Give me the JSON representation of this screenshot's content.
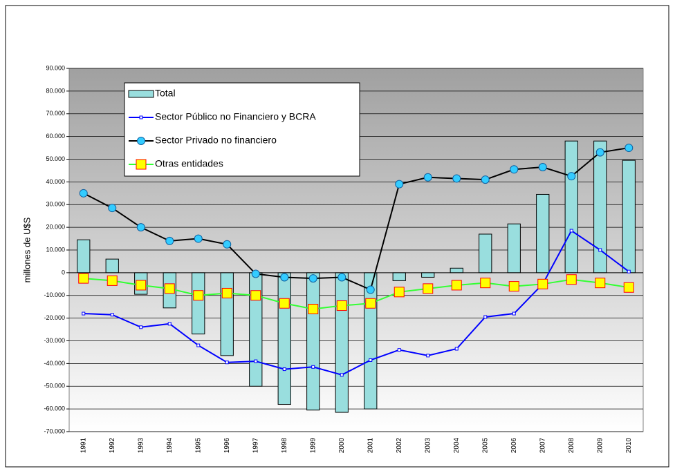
{
  "chart_data": {
    "type": "bar",
    "y_label": "millones de U$S",
    "categories": [
      "1991",
      "1992",
      "1993",
      "1994",
      "1995",
      "1996",
      "1997",
      "1998",
      "1999",
      "2000",
      "2001",
      "2002",
      "2003",
      "2004",
      "2005",
      "2006",
      "2007",
      "2008",
      "2009",
      "2010"
    ],
    "series": [
      {
        "name": "Total",
        "type": "bar",
        "color": "#99dede",
        "values": [
          14500,
          6000,
          -9500,
          -15500,
          -27000,
          -36500,
          -50000,
          -58000,
          -60500,
          -61500,
          -60000,
          -3500,
          -2000,
          2000,
          17000,
          21500,
          34500,
          58000,
          58000,
          49500
        ]
      },
      {
        "name": "Sector Público no Financiero y BCRA",
        "type": "line",
        "color": "#0000ff",
        "values": [
          -18000,
          -18500,
          -24000,
          -22500,
          -32000,
          -39500,
          -39000,
          -42500,
          -41500,
          -45000,
          -38500,
          -34000,
          -36500,
          -33500,
          -19500,
          -18000,
          -5000,
          18500,
          10000,
          500
        ]
      },
      {
        "name": "Sector Privado no financiero",
        "type": "line",
        "color": "#000000",
        "marker_color": "#33ccff",
        "values": [
          35000,
          28500,
          20000,
          14000,
          15000,
          12500,
          -500,
          -2000,
          -2500,
          -2000,
          -7500,
          39000,
          42000,
          41500,
          41000,
          45500,
          46500,
          42500,
          53000,
          55000
        ]
      },
      {
        "name": "Otras entidades",
        "type": "line",
        "color": "#33ff33",
        "marker_color": "#ffff00",
        "values": [
          -2500,
          -3500,
          -5500,
          -7000,
          -10000,
          -9000,
          -10000,
          -13500,
          -16000,
          -14500,
          -13500,
          -8500,
          -7000,
          -5500,
          -4500,
          -6000,
          -5000,
          -3000,
          -4500,
          -6500
        ]
      }
    ],
    "ylim": [
      -70000,
      90000
    ],
    "yticks": [
      {
        "value": -70000,
        "label": "-70.000"
      },
      {
        "value": -60000,
        "label": "-60.000"
      },
      {
        "value": -50000,
        "label": "-50.000"
      },
      {
        "value": -40000,
        "label": "-40.000"
      },
      {
        "value": -30000,
        "label": "-30.000"
      },
      {
        "value": -20000,
        "label": "-20.000"
      },
      {
        "value": -10000,
        "label": "-10.000"
      },
      0,
      {
        "value": 10000,
        "label": "10.000"
      },
      {
        "value": 20000,
        "label": "20.000"
      },
      {
        "value": 30000,
        "label": "30.000"
      },
      {
        "value": 40000,
        "label": "40.000"
      },
      {
        "value": 50000,
        "label": "50.000"
      },
      {
        "value": 60000,
        "label": "60.000"
      },
      {
        "value": 70000,
        "label": "70.000"
      },
      {
        "value": 80000,
        "label": "80.000"
      },
      {
        "value": 90000,
        "label": "90.000"
      }
    ],
    "grid": true
  }
}
